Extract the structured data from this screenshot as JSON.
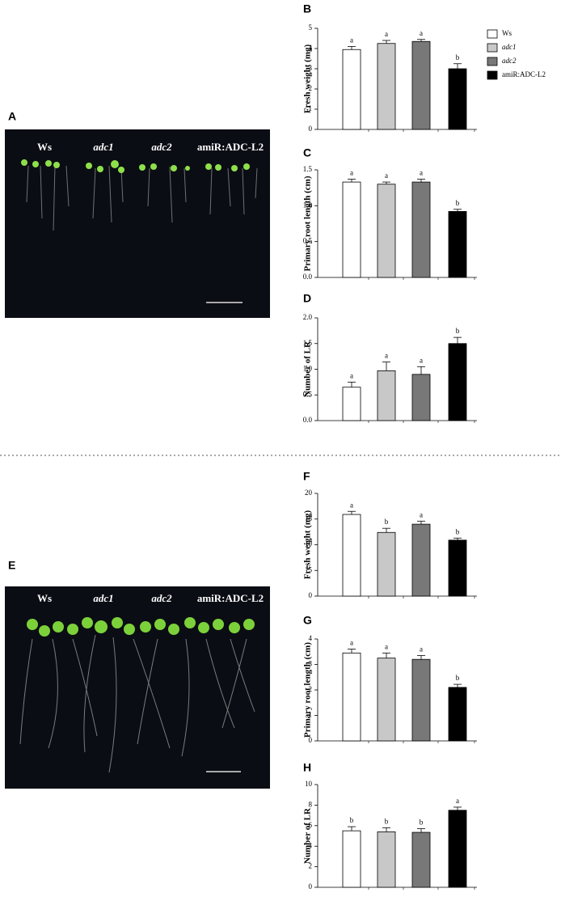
{
  "groups": [
    {
      "name": "Ws",
      "color": "#ffffff"
    },
    {
      "name": "adc1",
      "color": "#c8c8c8"
    },
    {
      "name": "adc2",
      "color": "#787878"
    },
    {
      "name": "amiR:ADC-L2",
      "color": "#000000"
    }
  ],
  "photos": [
    {
      "panel": "A",
      "labels": [
        "Ws",
        "adc1",
        "adc2",
        "amiR:ADC-L2"
      ]
    },
    {
      "panel": "E",
      "labels": [
        "Ws",
        "adc1",
        "adc2",
        "amiR:ADC-L2"
      ]
    }
  ],
  "chart_data": [
    {
      "type": "bar",
      "panel": "B",
      "y_label": "Fresh weight (mg)",
      "ylim": [
        0,
        5
      ],
      "yticks": [
        0,
        1,
        2,
        3,
        4,
        5
      ],
      "values": [
        3.95,
        4.25,
        4.35,
        3.0
      ],
      "errors": [
        0.15,
        0.15,
        0.1,
        0.25
      ],
      "annotations": [
        "a",
        "a",
        "a",
        "b"
      ]
    },
    {
      "type": "bar",
      "panel": "C",
      "y_label": "Primary root length (cm)",
      "ylim": [
        0,
        1.5
      ],
      "yticks": [
        {
          "value": 0,
          "label": "0.0"
        },
        0.5,
        {
          "value": 1,
          "label": "1.0"
        },
        1.5
      ],
      "values": [
        1.33,
        1.3,
        1.33,
        0.92
      ],
      "errors": [
        0.04,
        0.03,
        0.04,
        0.03
      ],
      "annotations": [
        "a",
        "a",
        "a",
        "b"
      ]
    },
    {
      "type": "bar",
      "panel": "D",
      "y_label": "Number of LR",
      "ylim": [
        0,
        2
      ],
      "yticks": [
        {
          "value": 0,
          "label": "0.0"
        },
        0.5,
        {
          "value": 1,
          "label": "1.0"
        },
        1.5,
        {
          "value": 2,
          "label": "2.0"
        }
      ],
      "values": [
        0.65,
        0.97,
        0.9,
        1.5
      ],
      "errors": [
        0.1,
        0.17,
        0.15,
        0.12
      ],
      "annotations": [
        "a",
        "a",
        "a",
        "b"
      ]
    },
    {
      "type": "bar",
      "panel": "F",
      "y_label": "Fresh weight (mg)",
      "ylim": [
        0,
        20
      ],
      "yticks": [
        0,
        5,
        10,
        15,
        20
      ],
      "values": [
        15.9,
        12.4,
        14.0,
        10.9
      ],
      "errors": [
        0.6,
        0.8,
        0.6,
        0.4
      ],
      "annotations": [
        "a",
        "b",
        "a",
        "b"
      ]
    },
    {
      "type": "bar",
      "panel": "G",
      "y_label": "Primary root length (cm)",
      "ylim": [
        0,
        4
      ],
      "yticks": [
        0,
        1,
        2,
        3,
        4
      ],
      "values": [
        3.45,
        3.25,
        3.2,
        2.1
      ],
      "errors": [
        0.15,
        0.2,
        0.15,
        0.12
      ],
      "annotations": [
        "a",
        "a",
        "a",
        "b"
      ]
    },
    {
      "type": "bar",
      "panel": "H",
      "y_label": "Number of LR",
      "ylim": [
        0,
        10
      ],
      "yticks": [
        0,
        2,
        4,
        6,
        8,
        10
      ],
      "values": [
        5.5,
        5.4,
        5.35,
        7.5
      ],
      "errors": [
        0.4,
        0.4,
        0.35,
        0.3
      ],
      "annotations": [
        "b",
        "b",
        "b",
        "a"
      ]
    }
  ]
}
